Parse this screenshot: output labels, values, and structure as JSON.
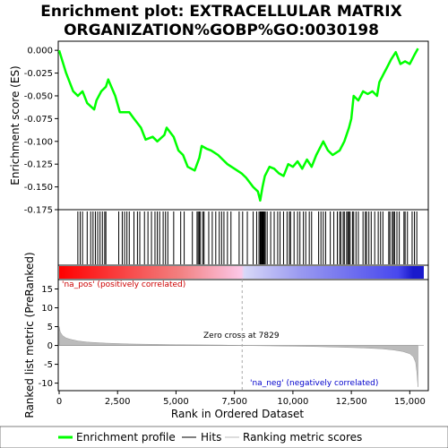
{
  "chart_data": {
    "type": "line",
    "title_line1": "Enrichment plot: EXTRACELLULAR MATRIX",
    "title_line2": "ORGANIZATION%GOBP%GO:0030198",
    "xlabel": "Rank in Ordered Dataset",
    "ylabel_top": "Enrichment score (ES)",
    "ylabel_bottom": "Ranked list metric (PreRanked)",
    "xlim": [
      0,
      15600
    ],
    "x_ticks": [
      0,
      2500,
      5000,
      7500,
      10000,
      12500,
      15000
    ],
    "x_tick_labels": [
      "0",
      "2,500",
      "5,000",
      "7,500",
      "10,000",
      "12,500",
      "15,000"
    ],
    "es_ylim": [
      -0.175,
      0.01
    ],
    "es_ticks": [
      0.0,
      -0.025,
      -0.05,
      -0.075,
      -0.1,
      -0.125,
      -0.15,
      -0.175
    ],
    "es_tick_labels": [
      "0.000",
      "-0.025",
      "-0.050",
      "-0.075",
      "-0.100",
      "-0.125",
      "-0.150",
      "-0.175"
    ],
    "metric_ylim": [
      -12,
      17.5
    ],
    "metric_ticks": [
      15,
      10,
      5,
      0,
      -5,
      -10
    ],
    "metric_tick_labels": [
      "15",
      "10",
      "5",
      "0",
      "-5",
      "-10"
    ],
    "enrichment_profile": {
      "x": [
        0,
        300,
        600,
        800,
        1000,
        1200,
        1500,
        1600,
        1800,
        2000,
        2100,
        2400,
        2600,
        3000,
        3200,
        3500,
        3700,
        4000,
        4200,
        4500,
        4600,
        4900,
        5100,
        5300,
        5500,
        5800,
        6000,
        6100,
        6300,
        6500,
        6800,
        7000,
        7200,
        7500,
        7800,
        8000,
        8300,
        8500,
        8600,
        8700,
        8800,
        9000,
        9200,
        9400,
        9600,
        9800,
        10000,
        10200,
        10400,
        10600,
        10800,
        11000,
        11200,
        11300,
        11500,
        11700,
        12000,
        12200,
        12400,
        12500,
        12600,
        12800,
        13000,
        13200,
        13400,
        13600,
        13700,
        13900,
        14000,
        14100,
        14200,
        14400,
        14600,
        14800,
        15000,
        15200,
        15350
      ],
      "y": [
        0.0,
        -0.025,
        -0.045,
        -0.05,
        -0.045,
        -0.058,
        -0.065,
        -0.055,
        -0.045,
        -0.04,
        -0.032,
        -0.05,
        -0.068,
        -0.068,
        -0.075,
        -0.085,
        -0.098,
        -0.095,
        -0.1,
        -0.093,
        -0.085,
        -0.095,
        -0.11,
        -0.115,
        -0.128,
        -0.132,
        -0.118,
        -0.105,
        -0.108,
        -0.11,
        -0.115,
        -0.12,
        -0.125,
        -0.13,
        -0.135,
        -0.14,
        -0.15,
        -0.155,
        -0.165,
        -0.15,
        -0.138,
        -0.128,
        -0.13,
        -0.135,
        -0.138,
        -0.125,
        -0.128,
        -0.122,
        -0.13,
        -0.12,
        -0.128,
        -0.115,
        -0.105,
        -0.1,
        -0.11,
        -0.115,
        -0.11,
        -0.1,
        -0.085,
        -0.075,
        -0.05,
        -0.055,
        -0.045,
        -0.048,
        -0.045,
        -0.05,
        -0.035,
        -0.025,
        -0.02,
        -0.015,
        -0.01,
        -0.002,
        -0.015,
        -0.012,
        -0.015,
        -0.005,
        0.002
      ]
    },
    "hits": [
      800,
      900,
      1000,
      1200,
      1350,
      1450,
      1550,
      1650,
      1750,
      1850,
      1950,
      2000,
      2550,
      2700,
      2800,
      2900,
      3000,
      3200,
      3350,
      3450,
      3650,
      3800,
      3950,
      4100,
      4200,
      4300,
      4450,
      4550,
      4650,
      4900,
      5200,
      5350,
      5700,
      5900,
      5950,
      6000,
      6050,
      6150,
      6200,
      6400,
      6550,
      6700,
      6850,
      6950,
      7050,
      7200,
      7350,
      7700,
      7850,
      8050,
      8300,
      8450,
      8550,
      8600,
      8620,
      8650,
      8680,
      8700,
      8720,
      8750,
      8780,
      8820,
      8900,
      9050,
      9200,
      9350,
      9450,
      9600,
      9750,
      9850,
      9900,
      10050,
      10200,
      10300,
      10450,
      10550,
      10700,
      10800,
      11100,
      11200,
      11300,
      11400,
      11600,
      11750,
      11900,
      12000,
      12050,
      12150,
      12200,
      12300,
      12350,
      12400,
      12450,
      12550,
      12600,
      12700,
      12800,
      13000,
      13100,
      13150,
      13250,
      13350,
      13500,
      13650,
      13750,
      13850,
      14100,
      14150,
      14250,
      14300,
      14350,
      14450,
      14550,
      14750,
      14800,
      14900,
      15100,
      15200,
      15300
    ],
    "zero_cross_label": "Zero cross at 7829",
    "zero_cross": 7829,
    "pos_label": "'na_pos' (positively correlated)",
    "neg_label": "'na_neg' (negatively correlated)",
    "metric_curve": {
      "x": [
        0,
        50,
        150,
        300,
        500,
        800,
        1200,
        2000,
        3000,
        4000,
        5000,
        6000,
        7000,
        7829,
        9000,
        10000,
        11000,
        12000,
        13000,
        13800,
        14300,
        14700,
        15000,
        15150,
        15250,
        15300,
        15350
      ],
      "y": [
        5.0,
        3.5,
        2.6,
        2.0,
        1.6,
        1.2,
        0.9,
        0.6,
        0.4,
        0.3,
        0.2,
        0.15,
        0.1,
        0.0,
        -0.1,
        -0.2,
        -0.3,
        -0.45,
        -0.65,
        -0.9,
        -1.2,
        -1.6,
        -2.2,
        -3.0,
        -4.5,
        -7.0,
        -11.0
      ]
    },
    "legend": [
      "Enrichment profile",
      "Hits",
      "Ranking metric scores"
    ],
    "colors": {
      "profile": "#00ff00",
      "hits": "#000000",
      "metric_fill": "#bbbbbb",
      "pos_text": "#cc0000",
      "neg_text": "#0000cc",
      "zero_line": "#aaaaaa"
    }
  }
}
